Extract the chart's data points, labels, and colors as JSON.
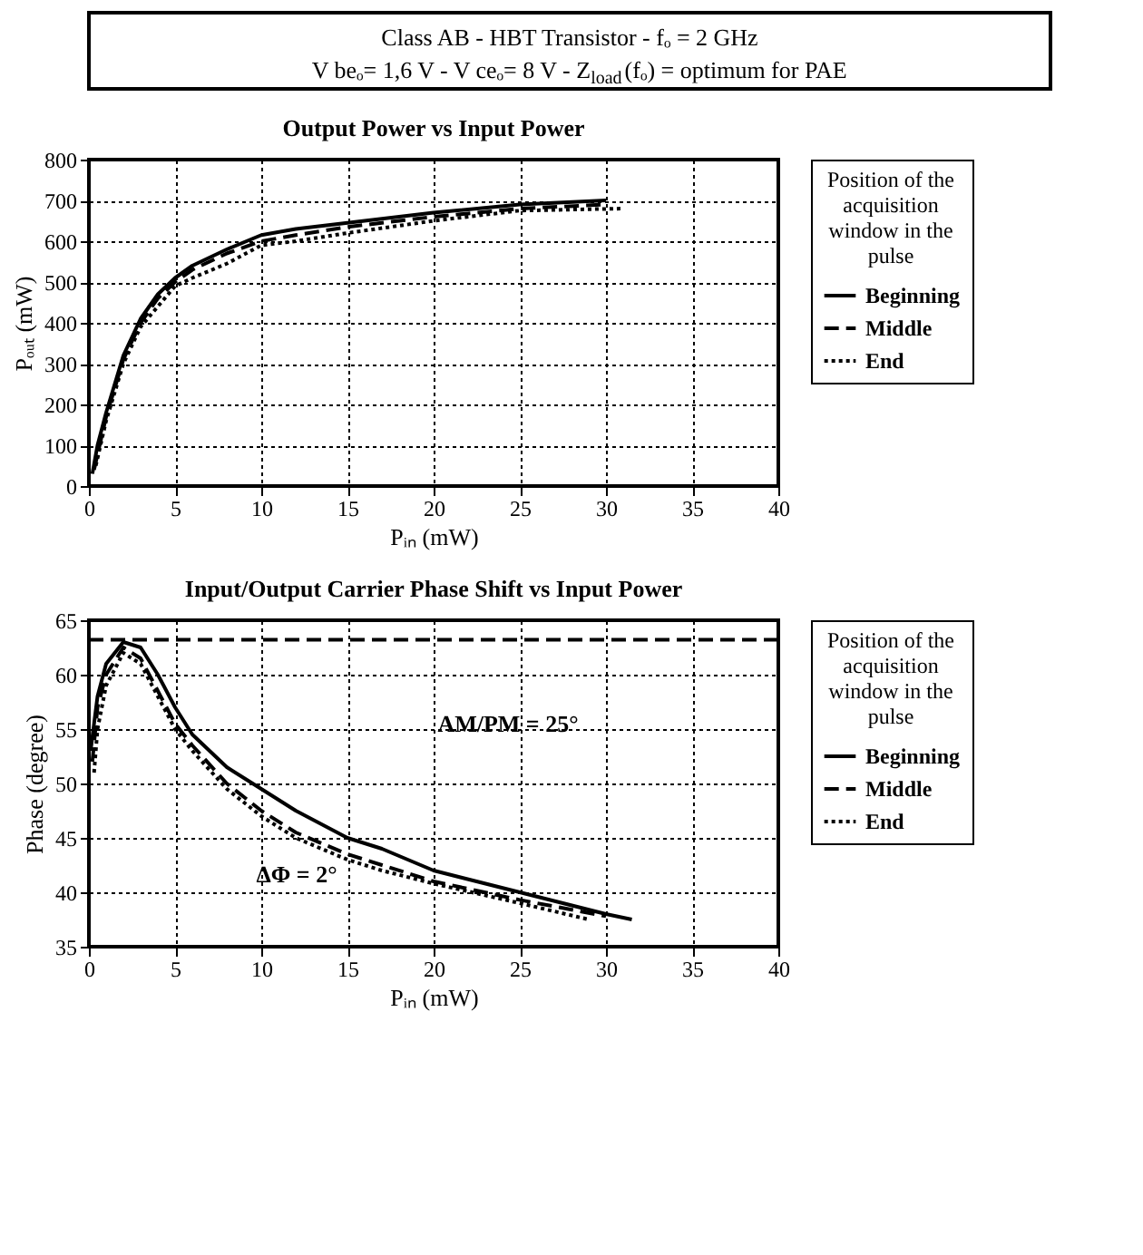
{
  "chart_data": [
    {
      "type": "other",
      "title": "Class AB - HBT Transistor - fₒ = 2 GHz",
      "subtitle": "V beₒ= 1,6 V - V ceₒ= 8 V - Z$_{load}$(fₒ) = optimum for PAE"
    },
    {
      "type": "line",
      "title": "Output Power vs Input Power",
      "xlabel": "Pᵢₙ (mW)",
      "ylabel": "Pₒᵤₜ (mW)",
      "legend_title": "Position of the acquisition window in the pulse",
      "legend": "right",
      "grid": true,
      "xlim": [
        0,
        40
      ],
      "xticks": [
        0,
        5,
        10,
        15,
        20,
        25,
        30,
        35,
        40
      ],
      "ylim": [
        0,
        800
      ],
      "yticks": [
        0,
        100,
        200,
        300,
        400,
        500,
        600,
        700,
        800
      ],
      "series": [
        {
          "name": "Beginning",
          "color": "#000000",
          "line_style": "solid",
          "x": [
            0.2,
            0.5,
            1,
            2,
            3,
            4,
            5,
            6,
            8,
            10,
            12,
            15,
            20,
            25,
            30
          ],
          "values": [
            30,
            100,
            180,
            320,
            410,
            470,
            510,
            540,
            580,
            615,
            630,
            645,
            670,
            690,
            700
          ]
        },
        {
          "name": "Middle",
          "color": "#000000",
          "line_style": "dashed",
          "x": [
            0.3,
            1,
            2,
            3,
            4,
            5,
            6,
            8,
            10,
            12,
            15,
            20,
            25,
            30
          ],
          "values": [
            40,
            170,
            310,
            400,
            460,
            500,
            530,
            570,
            600,
            615,
            635,
            660,
            680,
            690
          ]
        },
        {
          "name": "End",
          "color": "#000000",
          "line_style": "dotted",
          "x": [
            0.4,
            1,
            2,
            3,
            4,
            5,
            6,
            8,
            10,
            12,
            15,
            20,
            25,
            31
          ],
          "values": [
            50,
            160,
            300,
            390,
            440,
            490,
            510,
            545,
            590,
            600,
            620,
            650,
            675,
            680
          ]
        }
      ]
    },
    {
      "type": "line",
      "title": "Input/Output Carrier Phase Shift vs Input Power",
      "xlabel": "Pᵢₙ (mW)",
      "ylabel": "Phase (degree)",
      "legend_title": "Position of the acquisition window in the pulse",
      "legend": "right",
      "grid": true,
      "xlim": [
        0,
        40
      ],
      "xticks": [
        0,
        5,
        10,
        15,
        20,
        25,
        30,
        35,
        40
      ],
      "ylim": [
        35,
        65
      ],
      "yticks": [
        35,
        40,
        45,
        50,
        55,
        60,
        65
      ],
      "ref_lines": [
        {
          "axis": "y",
          "value": 63.2,
          "line_style": "dashed",
          "color": "#000000"
        }
      ],
      "annotations": [
        "AM/PM = 25°",
        "ΔΦ = 2°"
      ],
      "series": [
        {
          "name": "Beginning",
          "color": "#000000",
          "line_style": "solid",
          "x": [
            0.1,
            0.5,
            1,
            2,
            3,
            4,
            5,
            6,
            8,
            10,
            12,
            15,
            17,
            20,
            25,
            30,
            31.5
          ],
          "values": [
            53,
            58,
            61,
            63,
            62.5,
            60,
            57,
            54.5,
            51.5,
            49.5,
            47.5,
            45,
            44,
            42,
            40,
            38,
            37.5
          ]
        },
        {
          "name": "Middle",
          "color": "#000000",
          "line_style": "dashed",
          "x": [
            0.2,
            0.5,
            1,
            2,
            3,
            4,
            5,
            6,
            8,
            10,
            12,
            15,
            17,
            20,
            25,
            30
          ],
          "values": [
            52,
            57,
            60,
            62.5,
            61.5,
            58.5,
            55.5,
            53.5,
            50,
            47.5,
            45.5,
            43.5,
            42.5,
            41,
            39.3,
            37.8
          ]
        },
        {
          "name": "End",
          "color": "#000000",
          "line_style": "dotted",
          "x": [
            0.3,
            0.5,
            1,
            2,
            3,
            4,
            5,
            6,
            8,
            10,
            12,
            15,
            17,
            20,
            25,
            29
          ],
          "values": [
            51,
            55,
            59,
            62,
            61,
            58,
            55,
            53,
            49.5,
            47,
            45,
            43,
            42,
            40.8,
            39,
            37.5
          ]
        }
      ]
    }
  ]
}
